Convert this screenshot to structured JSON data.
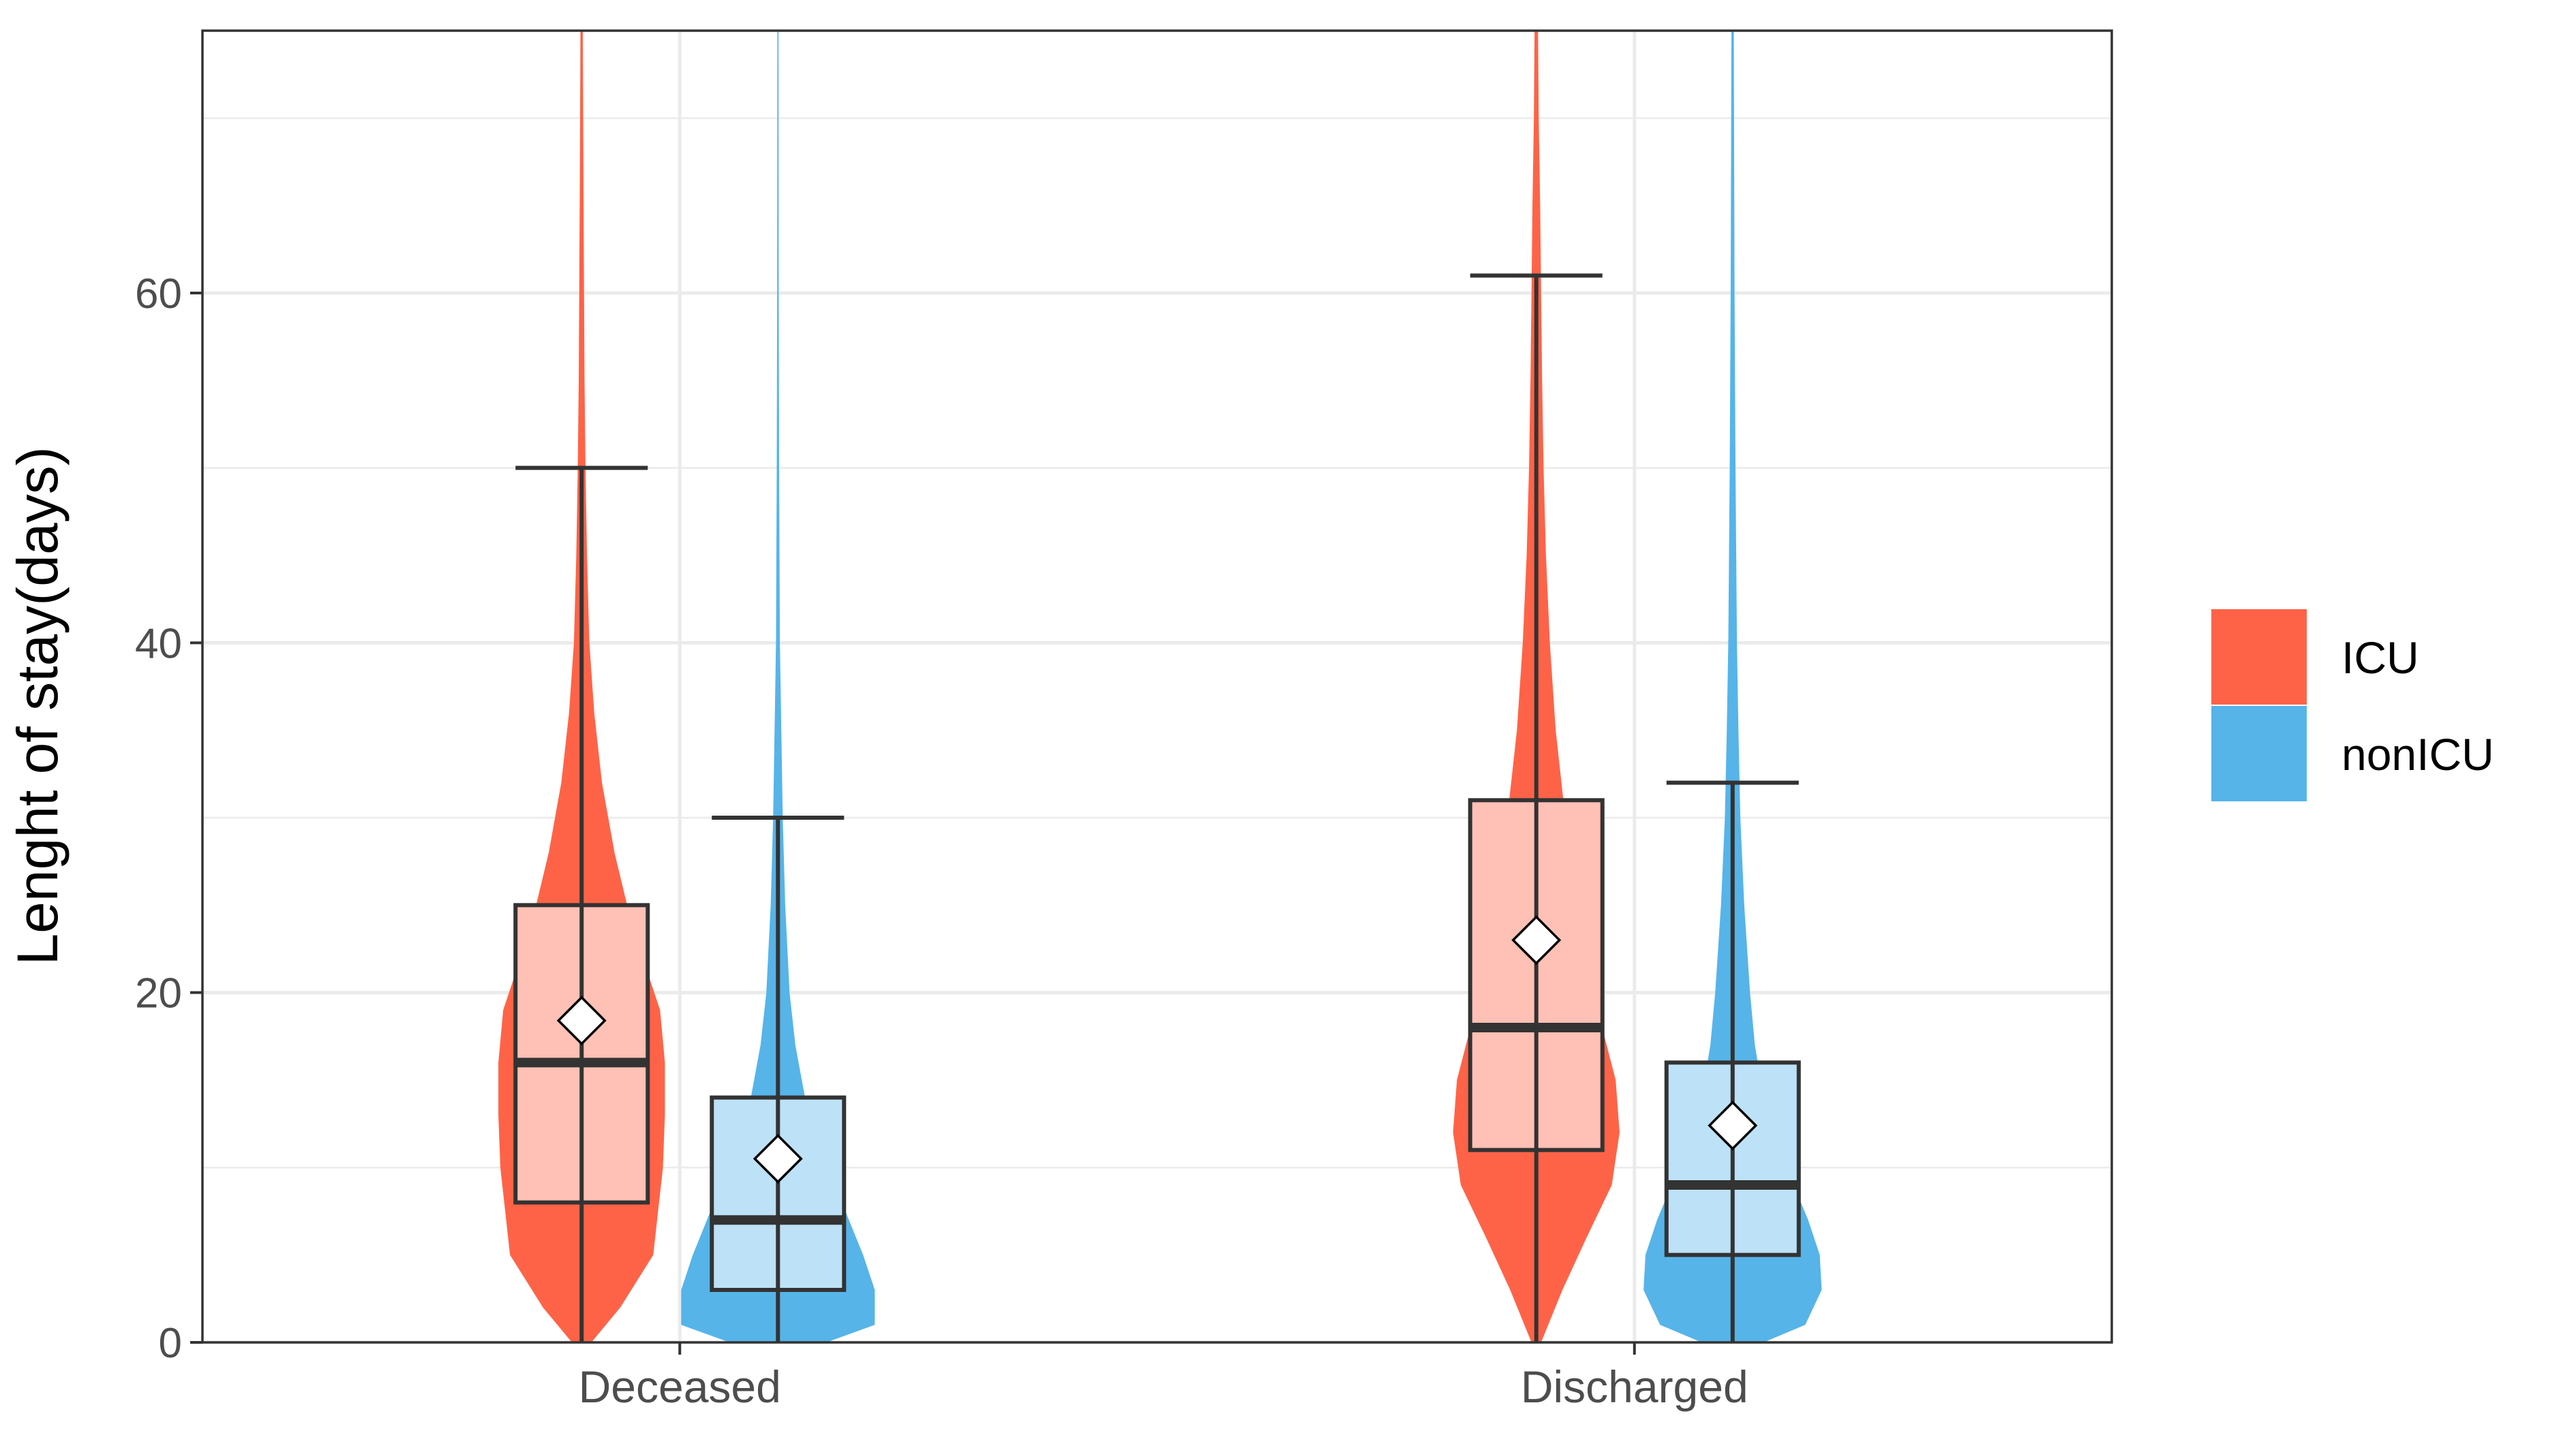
{
  "chart_data": {
    "type": "violin",
    "ylabel": "Lenght of stay(days)",
    "xlabel": "",
    "categories": [
      "Deceased",
      "Discharged"
    ],
    "ylim": [
      0,
      75
    ],
    "yticks": [
      0,
      20,
      40,
      60
    ],
    "grid": true,
    "legend": {
      "position": "right",
      "items": [
        "ICU",
        "nonICU"
      ]
    },
    "series": [
      {
        "name": "ICU",
        "color": "#FF6347",
        "box_fill": "#FFC0B5",
        "groups": [
          {
            "category": "Deceased",
            "min": 0,
            "q1": 8,
            "median": 16,
            "q3": 25,
            "whisker_high": 50,
            "mean": 18.4,
            "max": 75,
            "density": [
              [
                0,
                0.1
              ],
              [
                2,
                0.4
              ],
              [
                5,
                0.74
              ],
              [
                10,
                0.84
              ],
              [
                13,
                0.86
              ],
              [
                16,
                0.86
              ],
              [
                19,
                0.81
              ],
              [
                22,
                0.63
              ],
              [
                25,
                0.47
              ],
              [
                28,
                0.34
              ],
              [
                32,
                0.21
              ],
              [
                36,
                0.13
              ],
              [
                40,
                0.08
              ],
              [
                45,
                0.055
              ],
              [
                50,
                0.04
              ],
              [
                55,
                0.03
              ],
              [
                60,
                0.025
              ],
              [
                65,
                0.02
              ],
              [
                70,
                0.016
              ],
              [
                75,
                0.012
              ]
            ]
          },
          {
            "category": "Discharged",
            "min": 0,
            "q1": 11,
            "median": 18,
            "q3": 31,
            "whisker_high": 61,
            "mean": 23,
            "max": 75,
            "density": [
              [
                0,
                0.05
              ],
              [
                3,
                0.27
              ],
              [
                6,
                0.52
              ],
              [
                9,
                0.78
              ],
              [
                12,
                0.86
              ],
              [
                15,
                0.82
              ],
              [
                18,
                0.68
              ],
              [
                22,
                0.53
              ],
              [
                26,
                0.4
              ],
              [
                30,
                0.3
              ],
              [
                35,
                0.2
              ],
              [
                40,
                0.14
              ],
              [
                45,
                0.1
              ],
              [
                50,
                0.075
              ],
              [
                55,
                0.06
              ],
              [
                60,
                0.05
              ],
              [
                65,
                0.04
              ],
              [
                70,
                0.025
              ],
              [
                75,
                0.018
              ]
            ]
          }
        ]
      },
      {
        "name": "nonICU",
        "color": "#56B4E9",
        "box_fill": "#BDE1F6",
        "groups": [
          {
            "category": "Deceased",
            "min": 0,
            "q1": 3,
            "median": 7,
            "q3": 14,
            "whisker_high": 30,
            "mean": 10.5,
            "max": 75,
            "density": [
              [
                0,
                0.5
              ],
              [
                1,
                1.0
              ],
              [
                3,
                1.0
              ],
              [
                5,
                0.88
              ],
              [
                8,
                0.66
              ],
              [
                11,
                0.43
              ],
              [
                14,
                0.28
              ],
              [
                17,
                0.18
              ],
              [
                20,
                0.12
              ],
              [
                25,
                0.075
              ],
              [
                30,
                0.05
              ],
              [
                35,
                0.035
              ],
              [
                40,
                0.02
              ],
              [
                50,
                0.012
              ],
              [
                60,
                0.008
              ],
              [
                75,
                0.006
              ]
            ]
          },
          {
            "category": "Discharged",
            "min": 0,
            "q1": 5,
            "median": 9,
            "q3": 16,
            "whisker_high": 32,
            "mean": 12.4,
            "max": 75,
            "density": [
              [
                0,
                0.32
              ],
              [
                1,
                0.75
              ],
              [
                3,
                0.92
              ],
              [
                5,
                0.9
              ],
              [
                7,
                0.78
              ],
              [
                9,
                0.63
              ],
              [
                11,
                0.47
              ],
              [
                14,
                0.32
              ],
              [
                17,
                0.23
              ],
              [
                20,
                0.18
              ],
              [
                25,
                0.12
              ],
              [
                30,
                0.08
              ],
              [
                35,
                0.06
              ],
              [
                40,
                0.045
              ],
              [
                50,
                0.03
              ],
              [
                60,
                0.02
              ],
              [
                75,
                0.012
              ]
            ]
          }
        ]
      }
    ]
  }
}
